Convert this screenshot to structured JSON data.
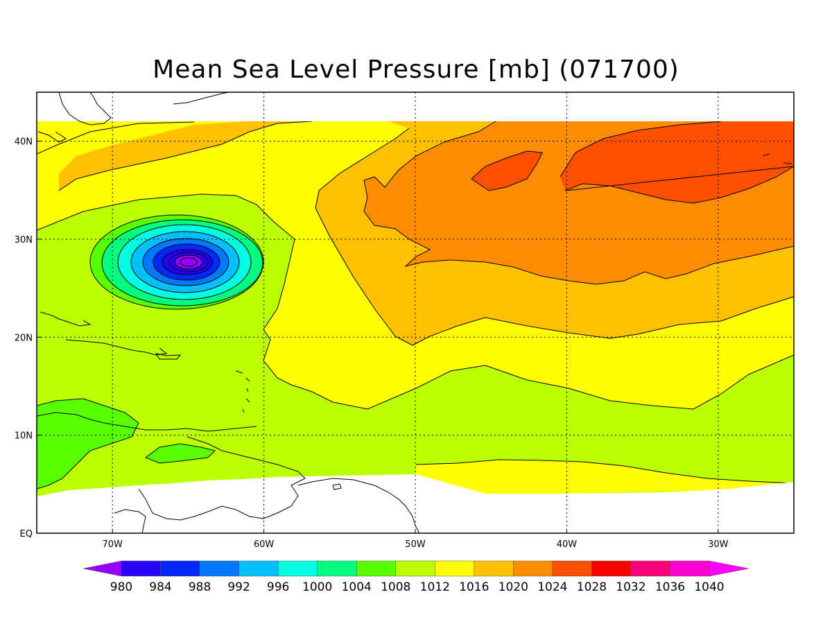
{
  "title": "Mean Sea Level Pressure [mb] (071700)",
  "map": {
    "lon_range": [
      -75,
      -25
    ],
    "lat_range": [
      0,
      45
    ],
    "lon_ticks": [
      {
        "value": -70,
        "label": "70W"
      },
      {
        "value": -60,
        "label": "60W"
      },
      {
        "value": -50,
        "label": "50W"
      },
      {
        "value": -40,
        "label": "40W"
      },
      {
        "value": -30,
        "label": "30W"
      }
    ],
    "lat_ticks": [
      {
        "value": 0,
        "label": "EQ"
      },
      {
        "value": 10,
        "label": "10N"
      },
      {
        "value": 20,
        "label": "20N"
      },
      {
        "value": 30,
        "label": "30N"
      },
      {
        "value": 40,
        "label": "40N"
      }
    ],
    "grid": "dotted",
    "low_center": {
      "lon": -65,
      "lat": 27.5,
      "approx_min_pressure_mb": 978
    }
  },
  "colorbar": {
    "unit": "mb",
    "levels": [
      980,
      984,
      988,
      992,
      996,
      1000,
      1004,
      1008,
      1012,
      1016,
      1020,
      1024,
      1028,
      1032,
      1036,
      1040
    ],
    "colors": [
      "#9600ff",
      "#2800ff",
      "#0028ff",
      "#0078ff",
      "#00c0ff",
      "#00ffe0",
      "#00ff80",
      "#58ff00",
      "#bcff00",
      "#ffff00",
      "#ffc000",
      "#ff8c00",
      "#ff5000",
      "#ff0000",
      "#ff007a",
      "#ff00d0",
      "#ff00ff"
    ]
  }
}
